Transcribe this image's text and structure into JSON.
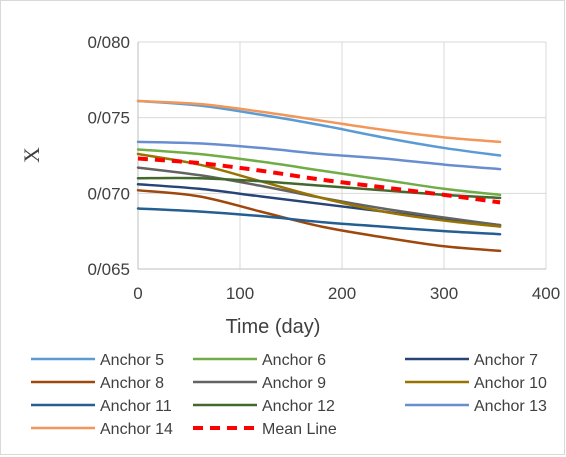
{
  "chart_data": {
    "type": "line",
    "title": "",
    "xlabel": "Time (day)",
    "ylabel": "X",
    "xlim": [
      0,
      400
    ],
    "ylim": [
      0.065,
      0.08
    ],
    "x_ticks": [
      0,
      100,
      200,
      300,
      400
    ],
    "x_tick_labels": [
      "0",
      "100",
      "200",
      "300",
      "400"
    ],
    "y_ticks": [
      0.065,
      0.07,
      0.075,
      0.08
    ],
    "y_tick_labels": [
      "0/065",
      "0/070",
      "0/075",
      "0/080"
    ],
    "grid": "vertical and horizontal major gridlines",
    "legend_position": "bottom",
    "x": [
      0,
      60,
      120,
      180,
      240,
      300,
      355
    ],
    "series": [
      {
        "name": "Anchor 5",
        "color": "#5B9BD5",
        "style": "solid",
        "values": [
          0.0761,
          0.0758,
          0.0752,
          0.0745,
          0.0737,
          0.073,
          0.0725
        ]
      },
      {
        "name": "Anchor 6",
        "color": "#70AD47",
        "style": "solid",
        "values": [
          0.0729,
          0.0726,
          0.0721,
          0.0715,
          0.0709,
          0.0703,
          0.0699
        ]
      },
      {
        "name": "Anchor 7",
        "color": "#264478",
        "style": "solid",
        "values": [
          0.0706,
          0.0703,
          0.0698,
          0.0693,
          0.0688,
          0.0683,
          0.0679
        ]
      },
      {
        "name": "Anchor 8",
        "color": "#9E480E",
        "style": "solid",
        "values": [
          0.0702,
          0.0698,
          0.0688,
          0.0678,
          0.0671,
          0.0665,
          0.0662
        ]
      },
      {
        "name": "Anchor 9",
        "color": "#636363",
        "style": "solid",
        "values": [
          0.0717,
          0.0712,
          0.0705,
          0.0697,
          0.069,
          0.0684,
          0.0679
        ]
      },
      {
        "name": "Anchor 10",
        "color": "#997300",
        "style": "solid",
        "values": [
          0.0726,
          0.0719,
          0.0708,
          0.0697,
          0.0688,
          0.0682,
          0.0678
        ]
      },
      {
        "name": "Anchor 11",
        "color": "#255E91",
        "style": "solid",
        "values": [
          0.069,
          0.0688,
          0.0685,
          0.0681,
          0.0678,
          0.0675,
          0.0673
        ]
      },
      {
        "name": "Anchor 12",
        "color": "#43682B",
        "style": "solid",
        "values": [
          0.071,
          0.071,
          0.0708,
          0.0705,
          0.0702,
          0.0699,
          0.0697
        ]
      },
      {
        "name": "Anchor 13",
        "color": "#698ED0",
        "style": "solid",
        "values": [
          0.0734,
          0.0733,
          0.073,
          0.0726,
          0.0723,
          0.0719,
          0.0716
        ]
      },
      {
        "name": "Anchor 14",
        "color": "#F1975A",
        "style": "solid",
        "values": [
          0.0761,
          0.0759,
          0.0754,
          0.0748,
          0.0742,
          0.0737,
          0.0734
        ]
      },
      {
        "name": "Mean Line",
        "color": "#FF0000",
        "style": "dashed",
        "values": [
          0.0723,
          0.072,
          0.0715,
          0.0709,
          0.0704,
          0.0699,
          0.0694
        ]
      }
    ]
  }
}
